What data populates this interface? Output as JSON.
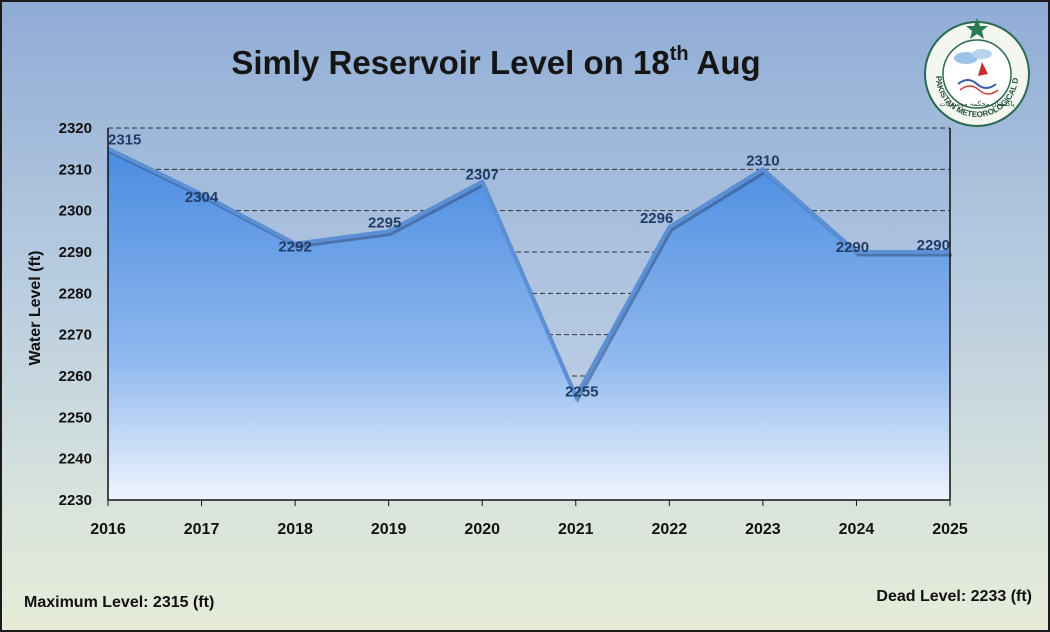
{
  "title": {
    "prefix": "Simly Reservoir Level on 18",
    "superscript": "th",
    "suffix": " Aug"
  },
  "logo": {
    "text": "PAKISTAN METEOROLOGICAL DEPARTMENT",
    "urdu_text": "پاکستان محکمہ موسمیات"
  },
  "notes": {
    "maximum": "Maximum Level: 2315 (ft)",
    "dead": "Dead Level: 2233 (ft)"
  },
  "colors": {
    "area_top": "#4f8fe0",
    "area_bottom": "#e8f0fb",
    "line": "#5b8fd6",
    "gridline": "#333333",
    "label": "#1f3d66"
  },
  "chart_data": {
    "type": "area",
    "title": "Simly Reservoir Level on 18th Aug",
    "xlabel": "",
    "ylabel": "Water Level (ft)",
    "categories": [
      "2016",
      "2017",
      "2018",
      "2019",
      "2020",
      "2021",
      "2022",
      "2023",
      "2024",
      "2025"
    ],
    "values": [
      2315,
      2304,
      2292,
      2295,
      2307,
      2255,
      2296,
      2310,
      2290,
      2290
    ],
    "ylim": [
      2230,
      2320
    ],
    "yticks": [
      2230,
      2240,
      2250,
      2260,
      2270,
      2280,
      2290,
      2300,
      2310,
      2320
    ],
    "grid": "horizontal dashed",
    "legend": "none"
  }
}
